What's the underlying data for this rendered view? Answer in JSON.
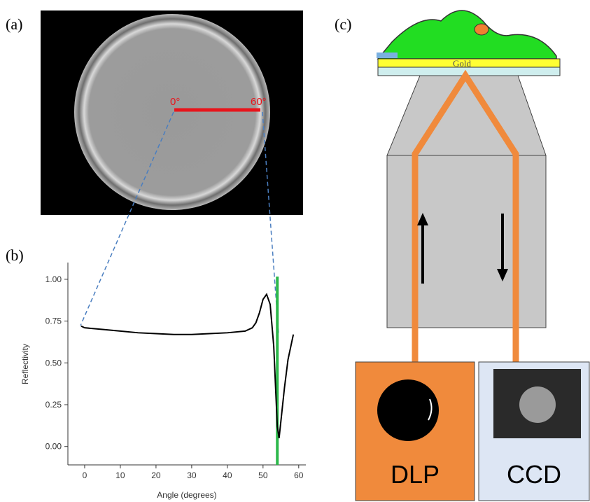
{
  "panel_labels": [
    "(a)",
    "(b)",
    "(c)"
  ],
  "panel_a": {
    "angle_labels": [
      "0°",
      "60°"
    ]
  },
  "chart_data": {
    "type": "line",
    "x_label": "Angle (degrees)",
    "y_label": "Reflectivity",
    "x": [
      -1,
      0,
      5,
      10,
      15,
      20,
      25,
      30,
      35,
      40,
      45,
      47,
      48,
      49,
      50,
      51,
      52,
      53,
      54,
      54.5,
      55,
      56,
      57,
      58.5
    ],
    "values": [
      0.72,
      0.71,
      0.7,
      0.69,
      0.68,
      0.675,
      0.67,
      0.67,
      0.675,
      0.68,
      0.69,
      0.71,
      0.74,
      0.8,
      0.88,
      0.91,
      0.85,
      0.6,
      0.12,
      0.05,
      0.15,
      0.35,
      0.52,
      0.67
    ],
    "color": "#000000",
    "xlim": [
      -4.7,
      62
    ],
    "ylim": [
      -0.11,
      1.1
    ],
    "xticks": [
      0,
      10,
      20,
      30,
      40,
      50,
      60
    ],
    "yticks": [
      {
        "value": 0,
        "label": "0.00"
      },
      {
        "value": 0.25,
        "label": "0.25"
      },
      {
        "value": 0.5,
        "label": "0.50"
      },
      {
        "value": 0.75,
        "label": "0.75"
      },
      {
        "value": 1,
        "label": "1.00"
      }
    ],
    "vline": {
      "x": 54,
      "color": "#2db84b"
    }
  },
  "panel_c": {
    "substrate_label": "Gold",
    "detectors": [
      "DLP",
      "CCD"
    ]
  }
}
